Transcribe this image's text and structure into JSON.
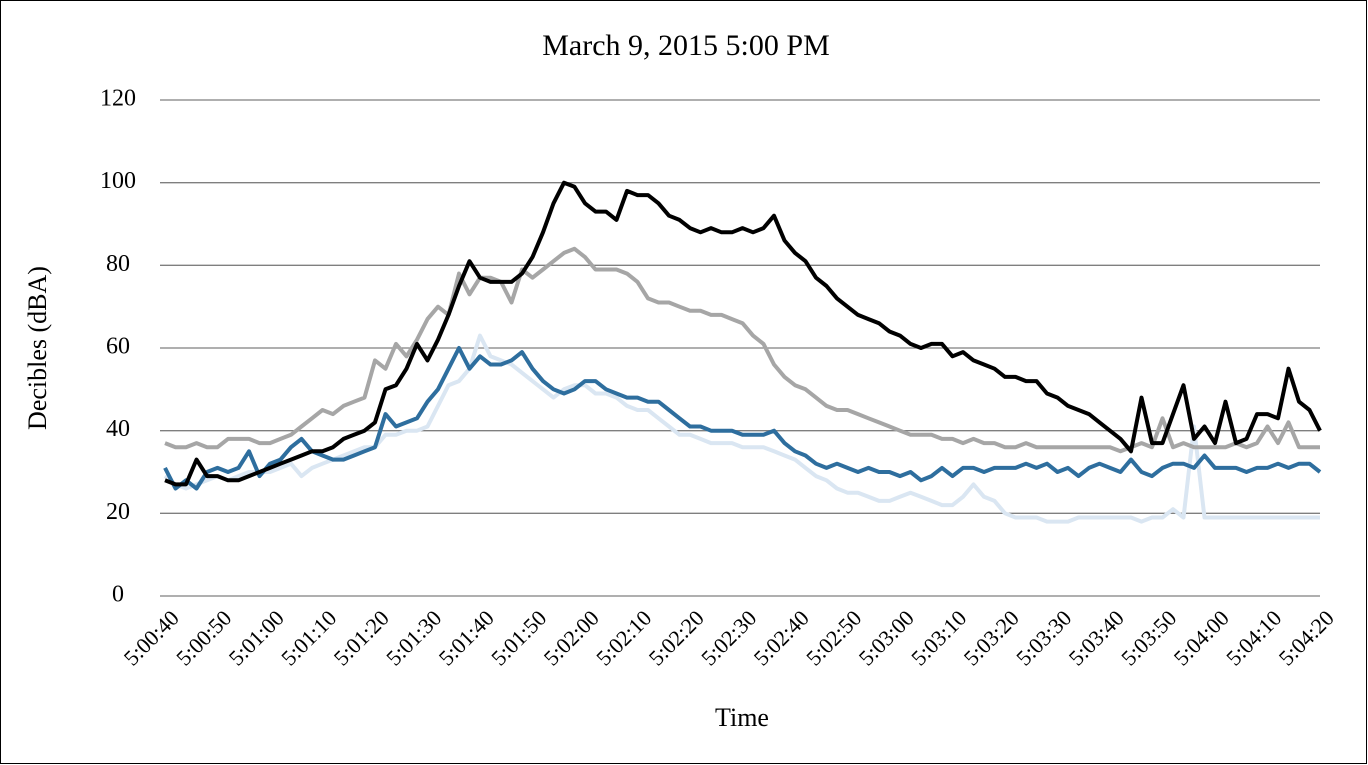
{
  "chart_data": {
    "type": "line",
    "title": "March 9, 2015 5:00 PM",
    "x_label": "Time",
    "y_label": "Decibles (dBA)",
    "categories": [
      "5:00:40",
      null,
      null,
      null,
      null,
      "5:00:50",
      null,
      null,
      null,
      null,
      "5:01:00",
      null,
      null,
      null,
      null,
      "5:01:10",
      null,
      null,
      null,
      null,
      "5:01:20",
      null,
      null,
      null,
      null,
      "5:01:30",
      null,
      null,
      null,
      null,
      "5:01:40",
      null,
      null,
      null,
      null,
      "5:01:50",
      null,
      null,
      null,
      null,
      "5:02:00",
      null,
      null,
      null,
      null,
      "5:02:10",
      null,
      null,
      null,
      null,
      "5:02:20",
      null,
      null,
      null,
      null,
      "5:02:30",
      null,
      null,
      null,
      null,
      "5:02:40",
      null,
      null,
      null,
      null,
      "5:02:50",
      null,
      null,
      null,
      null,
      "5:03:00",
      null,
      null,
      null,
      null,
      "5:03:10",
      null,
      null,
      null,
      null,
      "5:03:20",
      null,
      null,
      null,
      null,
      "5:03:30",
      null,
      null,
      null,
      null,
      "5:03:40",
      null,
      null,
      null,
      null,
      "5:03:50",
      null,
      null,
      null,
      null,
      "5:04:00",
      null,
      null,
      null,
      null,
      "5:04:10",
      null,
      null,
      null,
      null,
      "5:04:20"
    ],
    "series": [
      {
        "color": "#dae6f2",
        "values": [
          29,
          27,
          26,
          27,
          28,
          29,
          28,
          29,
          30,
          30,
          30,
          31,
          32,
          29,
          31,
          32,
          33,
          34,
          35,
          36,
          36,
          39,
          39,
          40,
          40,
          41,
          46,
          51,
          52,
          55,
          63,
          58,
          57,
          56,
          54,
          52,
          50,
          48,
          50,
          51,
          51,
          49,
          49,
          48,
          46,
          45,
          45,
          43,
          41,
          39,
          39,
          38,
          37,
          37,
          37,
          36,
          36,
          36,
          35,
          34,
          33,
          31,
          29,
          28,
          26,
          25,
          25,
          24,
          23,
          23,
          24,
          25,
          24,
          23,
          22,
          22,
          24,
          27,
          24,
          23,
          20,
          19,
          19,
          19,
          18,
          18,
          18,
          19,
          19,
          19,
          19,
          19,
          19,
          18,
          19,
          19,
          21,
          19,
          41,
          19,
          19,
          19,
          19,
          19,
          19,
          19,
          19,
          19,
          19,
          19,
          19
        ]
      },
      {
        "color": "#2e6e9e",
        "values": [
          31,
          26,
          28,
          26,
          30,
          31,
          30,
          31,
          35,
          29,
          32,
          33,
          36,
          38,
          35,
          34,
          33,
          33,
          34,
          35,
          36,
          44,
          41,
          42,
          43,
          47,
          50,
          55,
          60,
          55,
          58,
          56,
          56,
          57,
          59,
          55,
          52,
          50,
          49,
          50,
          52,
          52,
          50,
          49,
          48,
          48,
          47,
          47,
          45,
          43,
          41,
          41,
          40,
          40,
          40,
          39,
          39,
          39,
          40,
          37,
          35,
          34,
          32,
          31,
          32,
          31,
          30,
          31,
          30,
          30,
          29,
          30,
          28,
          29,
          31,
          29,
          31,
          31,
          30,
          31,
          31,
          31,
          32,
          31,
          32,
          30,
          31,
          29,
          31,
          32,
          31,
          30,
          33,
          30,
          29,
          31,
          32,
          32,
          31,
          34,
          31,
          31,
          31,
          30,
          31,
          31,
          32,
          31,
          32,
          32,
          30
        ]
      },
      {
        "color": "#a6a6a6",
        "values": [
          37,
          36,
          36,
          37,
          36,
          36,
          38,
          38,
          38,
          37,
          37,
          38,
          39,
          41,
          43,
          45,
          44,
          46,
          47,
          48,
          57,
          55,
          61,
          58,
          62,
          67,
          70,
          68,
          78,
          73,
          77,
          77,
          76,
          71,
          79,
          77,
          79,
          81,
          83,
          84,
          82,
          79,
          79,
          79,
          78,
          76,
          72,
          71,
          71,
          70,
          69,
          69,
          68,
          68,
          67,
          66,
          63,
          61,
          56,
          53,
          51,
          50,
          48,
          46,
          45,
          45,
          44,
          43,
          42,
          41,
          40,
          39,
          39,
          39,
          38,
          38,
          37,
          38,
          37,
          37,
          36,
          36,
          37,
          36,
          36,
          36,
          36,
          36,
          36,
          36,
          36,
          35,
          36,
          37,
          36,
          43,
          36,
          37,
          36,
          36,
          36,
          36,
          37,
          36,
          37,
          41,
          37,
          42,
          36,
          36,
          36
        ]
      },
      {
        "color": "#000000",
        "values": [
          28,
          27,
          27,
          33,
          29,
          29,
          28,
          28,
          29,
          30,
          31,
          32,
          33,
          34,
          35,
          35,
          36,
          38,
          39,
          40,
          42,
          50,
          51,
          55,
          61,
          57,
          62,
          68,
          75,
          81,
          77,
          76,
          76,
          76,
          78,
          82,
          88,
          95,
          100,
          99,
          95,
          93,
          93,
          91,
          98,
          97,
          97,
          95,
          92,
          91,
          89,
          88,
          89,
          88,
          88,
          89,
          88,
          89,
          92,
          86,
          83,
          81,
          77,
          75,
          72,
          70,
          68,
          67,
          66,
          64,
          63,
          61,
          60,
          61,
          61,
          58,
          59,
          57,
          56,
          55,
          53,
          53,
          52,
          52,
          49,
          48,
          46,
          45,
          44,
          42,
          40,
          38,
          35,
          48,
          37,
          37,
          44,
          51,
          38,
          41,
          37,
          47,
          37,
          38,
          44,
          44,
          43,
          55,
          47,
          45,
          40
        ]
      }
    ],
    "ylim": [
      0,
      120
    ],
    "yticks": [
      0,
      20,
      40,
      60,
      80,
      100,
      120
    ],
    "grid": true
  }
}
